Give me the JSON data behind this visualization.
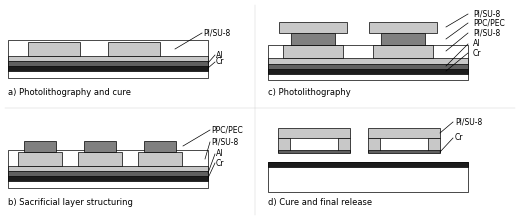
{
  "bg_color": "#ffffff",
  "colors": {
    "cr": "#1c1c1c",
    "al": "#606060",
    "pi_su8_light": "#c8c8c8",
    "pi_su8_dark": "#808080",
    "white": "#ffffff",
    "black": "#000000"
  },
  "labels": {
    "a": "a) Photolithography and cure",
    "b": "b) Sacrificial layer structuring",
    "c": "c) Photolithography",
    "d": "d) Cure and final release"
  }
}
